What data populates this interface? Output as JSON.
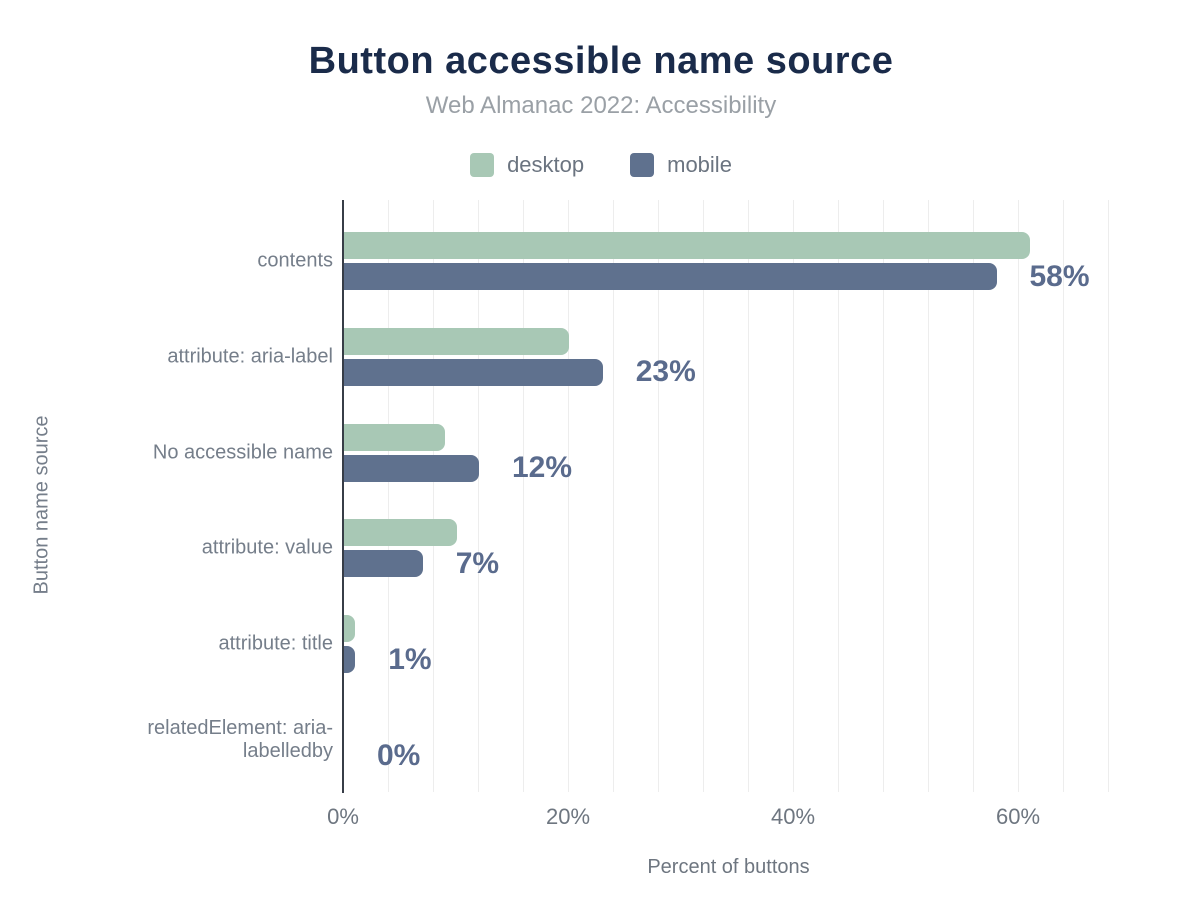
{
  "chart_data": {
    "type": "bar",
    "orientation": "horizontal",
    "title": "Button accessible name source",
    "subtitle": "Web Almanac 2022: Accessibility",
    "categories": [
      "contents",
      "attribute: aria-label",
      "No accessible name",
      "attribute: value",
      "attribute: title",
      "relatedElement: aria-labelledby"
    ],
    "series": [
      {
        "name": "desktop",
        "values": [
          61,
          20,
          9,
          10,
          1,
          0
        ]
      },
      {
        "name": "mobile",
        "values": [
          58,
          23,
          12,
          7,
          1,
          0
        ]
      }
    ],
    "bar_value_labels": [
      "58%",
      "23%",
      "12%",
      "7%",
      "1%",
      "0%"
    ],
    "bar_value_label_series": "mobile",
    "xlabel": "Percent of buttons",
    "ylabel": "Button name source",
    "x_tick_labels": [
      "0%",
      "20%",
      "40%",
      "60%"
    ],
    "x_tick_values": [
      0,
      20,
      40,
      60
    ],
    "xlim": [
      0,
      68.3
    ],
    "grid_interval_pct": 4,
    "grid": "vertical",
    "legend_position": "top"
  },
  "colors": {
    "title": "#1a2b4a",
    "subtitle": "#9aa0a6",
    "legend_text": "#6b7480",
    "category_text": "#757e8a",
    "axis_text": "#6e7680",
    "value_label": "#5a6b8d",
    "desktop": "#a8c8b5",
    "mobile": "#5f718e",
    "axis_line": "#373d47",
    "gridline": "#ededed",
    "card_background": "#ffffff"
  }
}
